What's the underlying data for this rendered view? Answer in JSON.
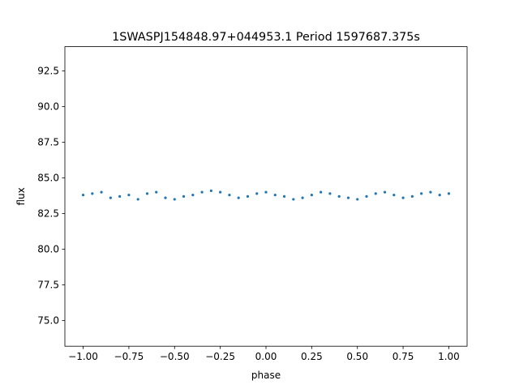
{
  "chart_data": {
    "type": "scatter",
    "title": "1SWASPJ154848.97+044953.1 Period 1597687.375s",
    "xlabel": "phase",
    "ylabel": "flux",
    "xlim": [
      -1.1,
      1.1
    ],
    "ylim": [
      73.2,
      94.2
    ],
    "x_ticks": [
      -1.0,
      -0.75,
      -0.5,
      -0.25,
      0.0,
      0.25,
      0.5,
      0.75,
      1.0
    ],
    "x_tick_labels": [
      "−1.00",
      "−0.75",
      "−0.50",
      "−0.25",
      "0.00",
      "0.25",
      "0.50",
      "0.75",
      "1.00"
    ],
    "y_ticks": [
      75.0,
      77.5,
      80.0,
      82.5,
      85.0,
      87.5,
      90.0,
      92.5
    ],
    "y_tick_labels": [
      "75.0",
      "77.5",
      "80.0",
      "82.5",
      "85.0",
      "87.5",
      "90.0",
      "92.5"
    ],
    "grid": false,
    "marker_color": "#1f77b4",
    "series": [
      {
        "x": [
          -1.0,
          -0.95,
          -0.9,
          -0.85,
          -0.8,
          -0.75,
          -0.7,
          -0.65,
          -0.6,
          -0.55,
          -0.5,
          -0.45,
          -0.4,
          -0.35,
          -0.3,
          -0.25,
          -0.2,
          -0.15,
          -0.1,
          -0.05,
          0.0,
          0.05,
          0.1,
          0.15,
          0.2,
          0.25,
          0.3,
          0.35,
          0.4,
          0.45,
          0.5,
          0.55,
          0.6,
          0.65,
          0.7,
          0.75,
          0.8,
          0.85,
          0.9,
          0.95,
          1.0
        ],
        "y": [
          83.8,
          83.9,
          84.0,
          83.6,
          83.7,
          83.8,
          83.5,
          83.9,
          84.0,
          83.6,
          83.5,
          83.7,
          83.8,
          84.0,
          84.1,
          84.0,
          83.8,
          83.6,
          83.7,
          83.9,
          84.0,
          83.8,
          83.7,
          83.5,
          83.6,
          83.8,
          84.0,
          83.9,
          83.7,
          83.6,
          83.5,
          83.7,
          83.9,
          84.0,
          83.8,
          83.6,
          83.7,
          83.9,
          84.0,
          83.8,
          83.9
        ]
      }
    ]
  }
}
